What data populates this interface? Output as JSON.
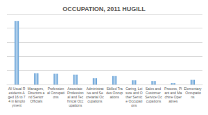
{
  "chart_data": {
    "type": "bar",
    "title": "OCCUPATION, 2011 HUGILL",
    "categories": [
      "All Usual Residents Aged 16 to 74 in Employment",
      "Managers, Directors and Senior Officials",
      "Professional Occupations",
      "Associate Professional and Technical Occupations",
      "Administrative and Secretarial Occupations",
      "Skilled Trades Occupations",
      "Caring, Leisure and Other Service Occupations",
      "Sales and Customer Service Occupations",
      "Process, Plant and Machine Operatives",
      "Elementary Occupations"
    ],
    "values": [
      225,
      40,
      38,
      35,
      22,
      30,
      15,
      12,
      5,
      17
    ],
    "color": "#5b9bd5",
    "ylim": [
      0,
      250
    ],
    "yticks": [
      0,
      50,
      100,
      150,
      200,
      250
    ],
    "grid": true,
    "tick_labels": "x"
  }
}
